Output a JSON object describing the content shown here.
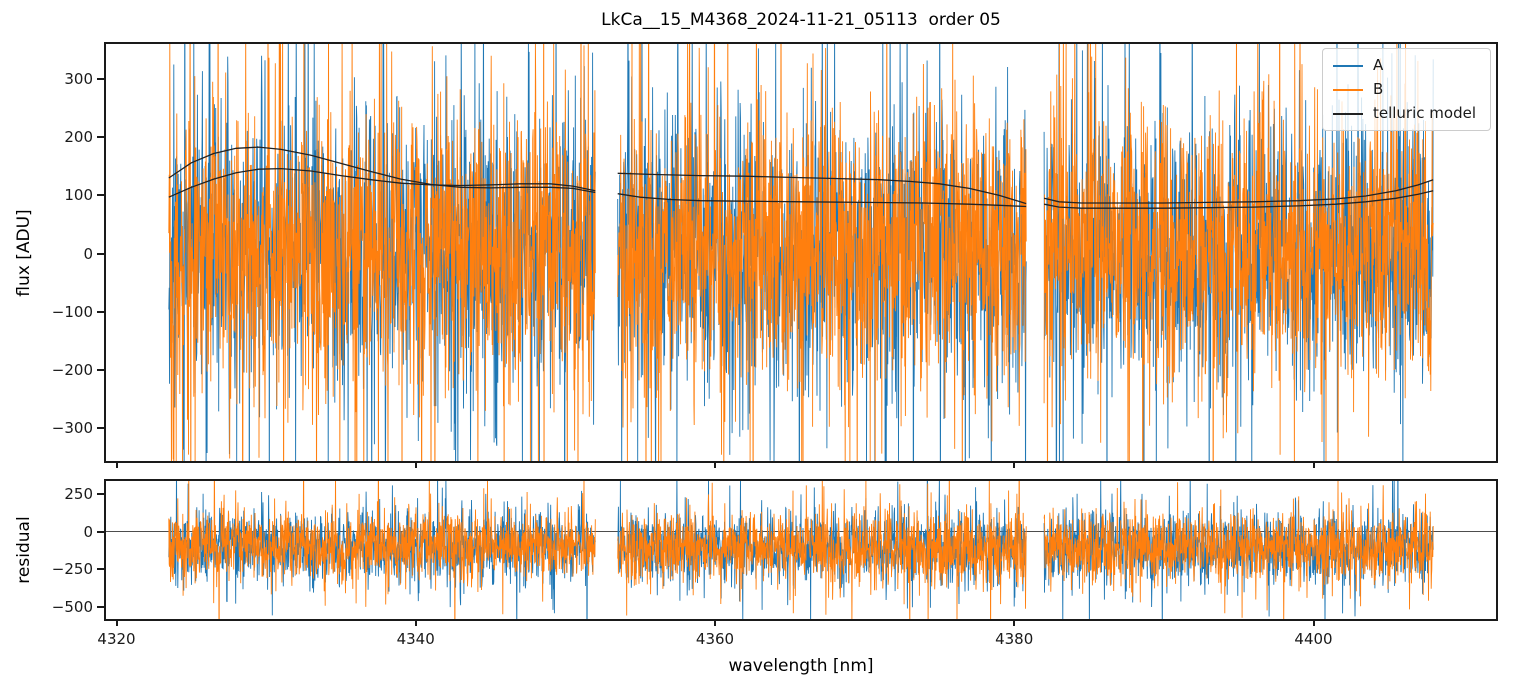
{
  "figure": {
    "title": "LkCa__15_M4368_2024-11-21_05113  order 05",
    "background": "#ffffff"
  },
  "colors": {
    "series_A": "#1f77b4",
    "series_B": "#ff7f0e",
    "telluric": "#222222",
    "spine": "#1a1a1a",
    "zero_line": "#4d4d4d",
    "legend_border": "#cccccc",
    "text": "#000000"
  },
  "legend": {
    "items": [
      {
        "label": "A",
        "color": "#1f77b4"
      },
      {
        "label": "B",
        "color": "#ff7f0e"
      },
      {
        "label": "telluric model",
        "color": "#222222"
      }
    ],
    "position": "upper right"
  },
  "xaxis": {
    "label": "wavelength [nm]",
    "tick_values": [
      4320,
      4340,
      4360,
      4380,
      4400
    ],
    "tick_labels": [
      "4320",
      "4340",
      "4360",
      "4380",
      "4400"
    ]
  },
  "chart_data": [
    {
      "type": "line",
      "panel": "flux",
      "title": "LkCa__15_M4368_2024-11-21_05113  order 05",
      "ylabel": "flux [ADU]",
      "xlabel": "",
      "xlim": [
        4319.3,
        4412.2
      ],
      "ylim": [
        -356,
        360
      ],
      "xticks": [
        4320,
        4340,
        4360,
        4380,
        4400
      ],
      "yticks": [
        300,
        200,
        100,
        0,
        -100,
        -200,
        -300
      ],
      "ytick_labels": [
        "300",
        "200",
        "100",
        "0",
        "−100",
        "−200",
        "−300"
      ],
      "grid": false,
      "zero_line": false,
      "show_xtick_labels": false,
      "legend_position": "upper right",
      "segments_nm": [
        [
          4323.5,
          4352.0
        ],
        [
          4353.5,
          4380.8
        ],
        [
          4382.0,
          4408.0
        ]
      ],
      "series": [
        {
          "name": "A",
          "color": "#1f77b4",
          "style": "noise",
          "noise": {
            "seed": 11,
            "mean": 5,
            "sigma": 115,
            "tail_prob": 0.12,
            "tail_sigma": 260,
            "points_per_nm": 45
          }
        },
        {
          "name": "B",
          "color": "#ff7f0e",
          "style": "noise",
          "noise": {
            "seed": 22,
            "mean": 5,
            "sigma": 115,
            "tail_prob": 0.12,
            "tail_sigma": 260,
            "points_per_nm": 45
          }
        },
        {
          "name": "telluric model",
          "color": "#222222",
          "style": "model",
          "curves": [
            [
              [
                4323.5,
                130
              ],
              [
                4325,
                156
              ],
              [
                4326.5,
                172
              ],
              [
                4328,
                181
              ],
              [
                4329.5,
                183
              ],
              [
                4331,
                179
              ],
              [
                4333,
                169
              ],
              [
                4335,
                155
              ],
              [
                4337,
                141
              ],
              [
                4339,
                128
              ],
              [
                4341,
                119
              ],
              [
                4343,
                114
              ],
              [
                4345,
                113
              ],
              [
                4347,
                114
              ],
              [
                4349,
                114
              ],
              [
                4350.5,
                112
              ],
              [
                4352,
                105
              ]
            ],
            [
              [
                4323.5,
                97
              ],
              [
                4325,
                114
              ],
              [
                4326.5,
                128
              ],
              [
                4328,
                139
              ],
              [
                4329.5,
                145
              ],
              [
                4331,
                146
              ],
              [
                4333,
                142
              ],
              [
                4335,
                134
              ],
              [
                4337,
                127
              ],
              [
                4339,
                121
              ],
              [
                4341,
                118
              ],
              [
                4343,
                117
              ],
              [
                4345,
                118
              ],
              [
                4347,
                120
              ],
              [
                4349,
                120
              ],
              [
                4350.5,
                116
              ],
              [
                4352,
                108
              ]
            ],
            [
              [
                4353.5,
                138
              ],
              [
                4356,
                136
              ],
              [
                4359,
                134
              ],
              [
                4362,
                133
              ],
              [
                4365,
                131
              ],
              [
                4368,
                129
              ],
              [
                4371,
                127
              ],
              [
                4373,
                124
              ],
              [
                4375,
                120
              ],
              [
                4377,
                112
              ],
              [
                4379,
                100
              ],
              [
                4380.8,
                86
              ]
            ],
            [
              [
                4353.5,
                103
              ],
              [
                4355,
                97
              ],
              [
                4357,
                93
              ],
              [
                4359,
                91
              ],
              [
                4362,
                90
              ],
              [
                4366,
                89
              ],
              [
                4370,
                88
              ],
              [
                4374,
                87
              ],
              [
                4377,
                85
              ],
              [
                4379,
                83
              ],
              [
                4380.8,
                81
              ]
            ],
            [
              [
                4382,
                95
              ],
              [
                4383,
                89
              ],
              [
                4384.5,
                87
              ],
              [
                4387,
                87
              ],
              [
                4390,
                87
              ],
              [
                4393,
                88
              ],
              [
                4396,
                89
              ],
              [
                4399,
                91
              ],
              [
                4401.5,
                94
              ],
              [
                4403.5,
                99
              ],
              [
                4405.5,
                108
              ],
              [
                4407,
                118
              ],
              [
                4408,
                127
              ]
            ],
            [
              [
                4382,
                85
              ],
              [
                4383,
                80
              ],
              [
                4384.5,
                78
              ],
              [
                4387,
                78
              ],
              [
                4390,
                78
              ],
              [
                4393,
                79
              ],
              [
                4396,
                80
              ],
              [
                4399,
                82
              ],
              [
                4401.5,
                85
              ],
              [
                4403.5,
                89
              ],
              [
                4405.5,
                95
              ],
              [
                4407,
                102
              ],
              [
                4408,
                108
              ]
            ]
          ]
        }
      ]
    },
    {
      "type": "line",
      "panel": "residual",
      "ylabel": "residual",
      "xlabel": "wavelength [nm]",
      "xlim": [
        4319.3,
        4412.2
      ],
      "ylim": [
        -577,
        333
      ],
      "xticks": [
        4320,
        4340,
        4360,
        4380,
        4400
      ],
      "xtick_labels": [
        "4320",
        "4340",
        "4360",
        "4380",
        "4400"
      ],
      "yticks": [
        250,
        0,
        -250,
        -500
      ],
      "ytick_labels": [
        "250",
        "0",
        "−250",
        "−500"
      ],
      "grid": false,
      "zero_line": true,
      "show_xtick_labels": true,
      "segments_nm": [
        [
          4323.5,
          4352.0
        ],
        [
          4353.5,
          4380.8
        ],
        [
          4382.0,
          4408.0
        ]
      ],
      "series": [
        {
          "name": "A",
          "color": "#1f77b4",
          "style": "noise",
          "noise": {
            "seed": 33,
            "mean": -105,
            "sigma": 115,
            "tail_prob": 0.1,
            "tail_sigma": 240,
            "points_per_nm": 45
          }
        },
        {
          "name": "B",
          "color": "#ff7f0e",
          "style": "noise",
          "noise": {
            "seed": 44,
            "mean": -105,
            "sigma": 115,
            "tail_prob": 0.1,
            "tail_sigma": 240,
            "points_per_nm": 45
          }
        }
      ]
    }
  ]
}
